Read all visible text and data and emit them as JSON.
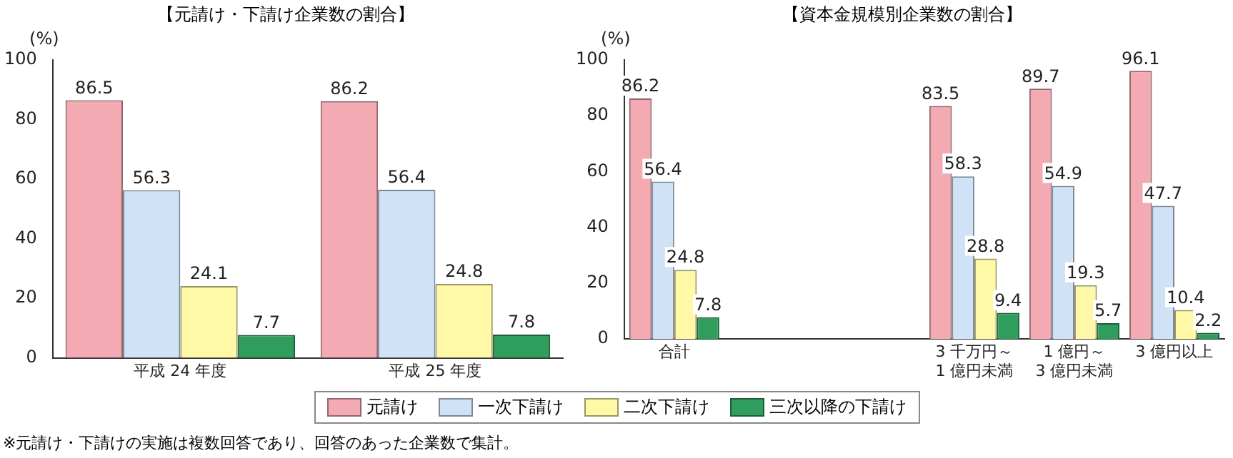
{
  "chart_data": [
    {
      "type": "bar",
      "title": "【元請け・下請け企業数の割合】",
      "ylabel": "(%)",
      "categories": [
        "平成 24 年度",
        "平成 25 年度"
      ],
      "ylim": [
        0,
        100
      ],
      "yticks": [
        0,
        20,
        40,
        60,
        80,
        100
      ],
      "grid": false,
      "legend": false,
      "data_labels": true,
      "series": [
        {
          "color": "#f4aab3",
          "values": [
            86.5,
            86.2
          ]
        },
        {
          "color": "#cfe2f6",
          "values": [
            56.3,
            56.4
          ]
        },
        {
          "color": "#fff8a6",
          "values": [
            24.1,
            24.8
          ]
        },
        {
          "color": "#2f9e5c",
          "values": [
            7.7,
            7.8
          ]
        }
      ],
      "annotations": [
        "※元請け・下請けの実施は複数回答であり、回答のあった企業数で集計。"
      ]
    },
    {
      "type": "bar",
      "title": "【資本金規模別企業数の割合】",
      "ylabel": "(%)",
      "categories": [
        "合計",
        null,
        null,
        "3 千万円～\n1 億円未満",
        "1 億円～\n3 億円未満",
        "3 億円以上"
      ],
      "ylim": [
        0,
        100
      ],
      "yticks": [
        0,
        20,
        40,
        60,
        80,
        100
      ],
      "grid": false,
      "legend": "bottom",
      "data_labels": true,
      "series": [
        {
          "name": "元請け",
          "color": "#f4aab3",
          "values": [
            86.2,
            null,
            null,
            83.5,
            89.7,
            96.1
          ]
        },
        {
          "name": "一次下請け",
          "color": "#cfe2f6",
          "values": [
            56.4,
            null,
            null,
            58.3,
            54.9,
            47.7
          ]
        },
        {
          "name": "二次下請け",
          "color": "#fff8a6",
          "values": [
            24.8,
            null,
            null,
            28.8,
            19.3,
            10.4
          ]
        },
        {
          "name": "三次以降の下請け",
          "color": "#2f9e5c",
          "values": [
            7.8,
            null,
            null,
            9.4,
            5.7,
            2.2
          ]
        }
      ]
    }
  ]
}
